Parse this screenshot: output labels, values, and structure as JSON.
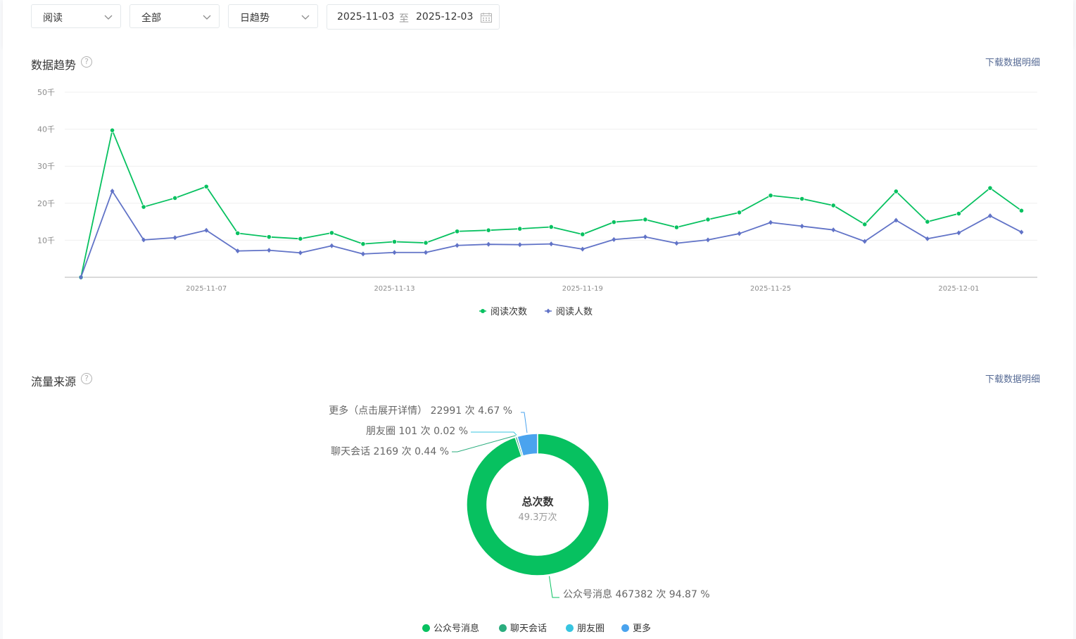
{
  "filters": {
    "metric": "阅读",
    "scope": "全部",
    "granularity": "日趋势",
    "date_start": "2025-11-03",
    "date_sep": "至",
    "date_end": "2025-12-03"
  },
  "trend_section": {
    "title": "数据趋势",
    "help": "?",
    "download": "下载数据明细"
  },
  "source_section": {
    "title": "流量来源",
    "help": "?",
    "download": "下载数据明细",
    "center_title": "总次数",
    "center_value": "49.3万次",
    "slice_labels": [
      "公众号消息 467382 次 94.87 %",
      "聊天会话 2169 次 0.44 %",
      "朋友圈 101 次 0.02 %",
      "更多（点击展开详情） 22991 次 4.67 %"
    ]
  },
  "chart_data": [
    {
      "type": "line",
      "x": [
        "2025-11-03",
        "2025-11-04",
        "2025-11-05",
        "2025-11-06",
        "2025-11-07",
        "2025-11-08",
        "2025-11-09",
        "2025-11-10",
        "2025-11-11",
        "2025-11-12",
        "2025-11-13",
        "2025-11-14",
        "2025-11-15",
        "2025-11-16",
        "2025-11-17",
        "2025-11-18",
        "2025-11-19",
        "2025-11-20",
        "2025-11-21",
        "2025-11-22",
        "2025-11-23",
        "2025-11-24",
        "2025-11-25",
        "2025-11-26",
        "2025-11-27",
        "2025-11-28",
        "2025-11-29",
        "2025-11-30",
        "2025-12-01",
        "2025-12-02",
        "2025-12-03"
      ],
      "x_tick_labels": [
        "2025-11-07",
        "2025-11-13",
        "2025-11-19",
        "2025-11-25",
        "2025-12-01"
      ],
      "y_tick_labels": [
        "10千",
        "20千",
        "30千",
        "40千",
        "50千"
      ],
      "ylim": [
        0,
        50000
      ],
      "grid": true,
      "legend": "bottom-center",
      "series": [
        {
          "name": "阅读次数",
          "color": "#07c160",
          "marker": "circle",
          "values": [
            0,
            39700,
            19000,
            21400,
            24500,
            11900,
            10900,
            10400,
            12000,
            9000,
            9600,
            9300,
            12400,
            12700,
            13100,
            13600,
            11600,
            14900,
            15600,
            13500,
            15600,
            17500,
            22100,
            21200,
            19400,
            14300,
            23200,
            15000,
            17200,
            24100,
            18000
          ]
        },
        {
          "name": "阅读人数",
          "color": "#6173c7",
          "marker": "diamond",
          "values": [
            0,
            23300,
            10100,
            10700,
            12700,
            7100,
            7300,
            6600,
            8500,
            6300,
            6700,
            6700,
            8600,
            8900,
            8800,
            9000,
            7600,
            10200,
            10900,
            9200,
            10100,
            11800,
            14800,
            13800,
            12800,
            9700,
            15400,
            10400,
            12000,
            16600,
            12200
          ]
        }
      ]
    },
    {
      "type": "pie",
      "categories": [
        "公众号消息",
        "聊天会话",
        "朋友圈",
        "更多"
      ],
      "values": [
        467382,
        2169,
        101,
        22991
      ],
      "percentages": [
        94.87,
        0.44,
        0.02,
        4.67
      ],
      "colors": [
        "#07c160",
        "#2bad7e",
        "#37c5e0",
        "#4aa3ee"
      ],
      "legend": "bottom-center"
    }
  ]
}
